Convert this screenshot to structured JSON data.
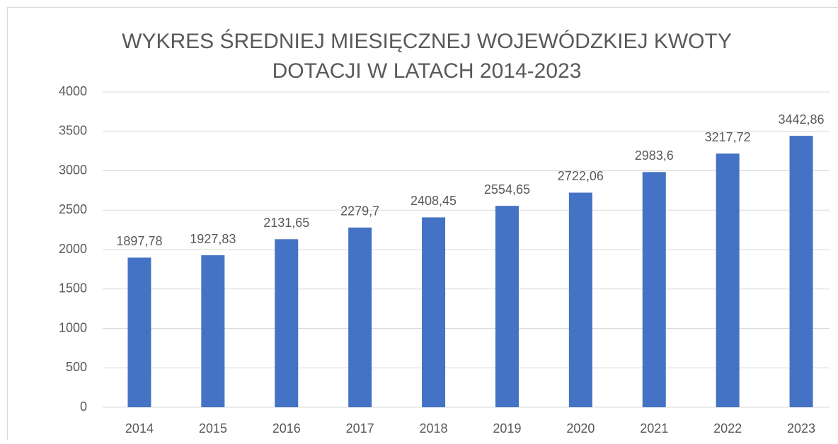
{
  "chart_data": {
    "type": "bar",
    "title": [
      "WYKRES ŚREDNIEJ MIESIĘCZNEJ WOJEWÓDZKIEJ KWOTY",
      "DOTACJI W LATACH 2014-2023"
    ],
    "categories": [
      "2014",
      "2015",
      "2016",
      "2017",
      "2018",
      "2019",
      "2020",
      "2021",
      "2022",
      "2023"
    ],
    "values": [
      1897.78,
      1927.83,
      2131.65,
      2279.7,
      2408.45,
      2554.65,
      2722.06,
      2983.6,
      3217.72,
      3442.86
    ],
    "value_labels": [
      "1897,78",
      "1927,83",
      "2131,65",
      "2279,7",
      "2408,45",
      "2554,65",
      "2722,06",
      "2983,6",
      "3217,72",
      "3442,86"
    ],
    "color": "#4472c4",
    "ylim": [
      0,
      4000
    ],
    "yticks": [
      0,
      500,
      1000,
      1500,
      2000,
      2500,
      3000,
      3500,
      4000
    ],
    "grid": true
  }
}
